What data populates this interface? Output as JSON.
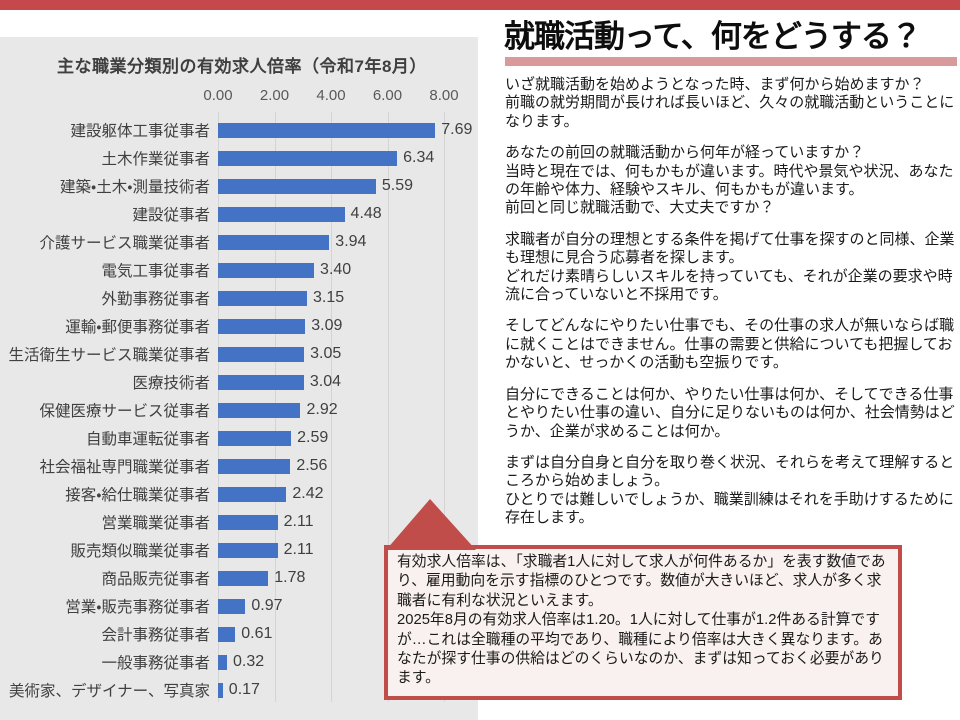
{
  "colors": {
    "accent_red": "#C5494C",
    "title_underline_pink": "#D89A9A",
    "callout_border_red": "#C04D4A",
    "callout_background": "#F9F1EF",
    "panel_gray": "#E9E8E8",
    "bar_blue": "#4472C4"
  },
  "chart_data": {
    "type": "bar",
    "orientation": "horizontal",
    "title": "主な職業分類別の有効求人倍率（令和7年8月）",
    "xlabel": "",
    "ylabel": "",
    "xlim": [
      0,
      8.8
    ],
    "x_ticks": [
      "0.00",
      "2.00",
      "4.00",
      "6.00",
      "8.00"
    ],
    "grid": true,
    "bar_color": "#4472C4",
    "categories": [
      "建設躯体工事従事者",
      "土木作業従事者",
      "建築・土木・測量技術者",
      "建設従事者",
      "介護サービス職業従事者",
      "電気工事従事者",
      "外勤事務従事者",
      "運輸・郵便事務従事者",
      "生活衛生サービス職業従事者",
      "医療技術者",
      "保健医療サービス従事者",
      "自動車運転従事者",
      "社会福祉専門職業従事者",
      "接客・給仕職業従事者",
      "営業職業従事者",
      "販売類似職業従事者",
      "商品販売従事者",
      "営業・販売事務従事者",
      "会計事務従事者",
      "一般事務従事者",
      "美術家、デザイナー、写真家"
    ],
    "values": [
      7.69,
      6.34,
      5.59,
      4.48,
      3.94,
      3.4,
      3.15,
      3.09,
      3.05,
      3.04,
      2.92,
      2.59,
      2.56,
      2.42,
      2.11,
      2.11,
      1.78,
      0.97,
      0.61,
      0.32,
      0.17
    ],
    "value_labels": [
      "7.69",
      "6.34",
      "5.59",
      "4.48",
      "3.94",
      "3.40",
      "3.15",
      "3.09",
      "3.05",
      "3.04",
      "2.92",
      "2.59",
      "2.56",
      "2.42",
      "2.11",
      "2.11",
      "1.78",
      "0.97",
      "0.61",
      "0.32",
      "0.17"
    ]
  },
  "main": {
    "title": "就職活動って、何をどうする？",
    "paragraphs": [
      [
        "いざ就職活動を始めようとなった時、まず何から始めますか？",
        "前職の就労期間が長ければ長いほど、久々の就職活動ということになります。"
      ],
      [
        "あなたの前回の就職活動から何年が経っていますか？",
        "当時と現在では、何もかもが違います。時代や景気や状況、あなたの年齢や体力、経験やスキル、何もかもが違います。",
        "前回と同じ就職活動で、大丈夫ですか？"
      ],
      [
        "求職者が自分の理想とする条件を掲げて仕事を探すのと同様、企業も理想に見合う応募者を探します。",
        "どれだけ素晴らしいスキルを持っていても、それが企業の要求や時流に合っていないと不採用です。"
      ],
      [
        "そしてどんなにやりたい仕事でも、その仕事の求人が無いならば職に就くことはできません。仕事の需要と供給についても把握しておかないと、せっかくの活動も空振りです。"
      ],
      [
        "自分にできることは何か、やりたい仕事は何か、そしてできる仕事とやりたい仕事の違い、自分に足りないものは何か、社会情勢はどうか、企業が求めることは何か。"
      ],
      [
        "まずは自分自身と自分を取り巻く状況、それらを考えて理解するところから始めましょう。",
        "ひとりでは難しいでしょうか、職業訓練はそれを手助けするために存在します。"
      ]
    ]
  },
  "callout": {
    "paragraphs": [
      "有効求人倍率は、「求職者1人に対して求人が何件あるか」を表す数値であり、雇用動向を示す指標のひとつです。数値が大きいほど、求人が多く求職者に有利な状況といえます。",
      "2025年8月の有効求人倍率は1.20。1人に対して仕事が1.2件ある計算ですが…これは全職種の平均であり、職種により倍率は大きく異なります。あなたが探す仕事の供給はどのくらいなのか、まずは知っておく必要があります。"
    ]
  }
}
